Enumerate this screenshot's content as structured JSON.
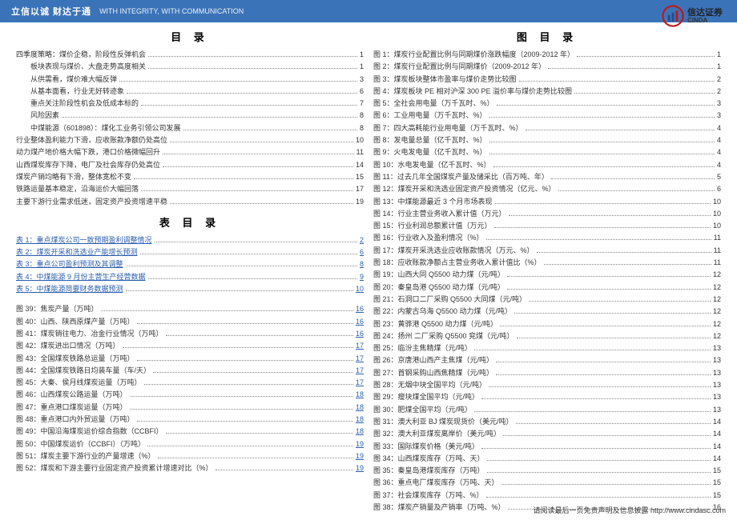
{
  "header": {
    "cn": "立信以诚 财达于通",
    "en": "WITH INTEGRITY, WITH COMMUNICATION",
    "logo_cn": "信达证券",
    "logo_en": "CINDA"
  },
  "titles": {
    "toc": "目 录",
    "tables": "表 目 录",
    "figures": "图 目 录"
  },
  "toc_main": [
    {
      "t": "四季度策略：煤价企稳，阶段性反弹机会",
      "p": "1"
    },
    {
      "t": "板块表现与煤价、大盘走势高度相关",
      "p": "1",
      "i": 1
    },
    {
      "t": "从供需看，煤价难大幅反弹",
      "p": "3",
      "i": 1
    },
    {
      "t": "从基本面看，行业无好转迹象",
      "p": "6",
      "i": 1
    },
    {
      "t": "重点关注阶段性机会及低成本标的",
      "p": "7",
      "i": 1
    },
    {
      "t": "风险因素",
      "p": "8",
      "i": 1
    },
    {
      "t": "中煤能源（601898）：煤化工业务引领公司发展",
      "p": "8",
      "i": 1
    },
    {
      "t": "行业整体盈利能力下滑，应收账款净额仍处高位",
      "p": "10"
    },
    {
      "t": "动力煤产地价格大幅下跌，港口价格微幅回升",
      "p": "11"
    },
    {
      "t": "山西煤炭库存下降，电厂及社会库存仍处高位",
      "p": "14"
    },
    {
      "t": "煤炭产销均略有下滑，整体宽松不变",
      "p": "15"
    },
    {
      "t": "铁路运量基本稳定，沿海运价大幅回落",
      "p": "17"
    },
    {
      "t": "主要下游行业需求低迷，固定资产投资增速平稳",
      "p": "19"
    }
  ],
  "toc_tables": [
    {
      "t": "表 1：重点煤炭公司一致预期盈利调整情况",
      "p": "2",
      "link": true
    },
    {
      "t": "表 2：煤炭开采和洗选业产能增长预测",
      "p": "6",
      "link": true
    },
    {
      "t": "表 3：重点公司盈利预测及其调整",
      "p": "8",
      "link": true
    },
    {
      "t": "表 4：中煤能源 9 月份主营生产经营数据",
      "p": "9",
      "link": true
    },
    {
      "t": "表 5：中煤能源简要财务数据预测",
      "p": "10",
      "link": true
    }
  ],
  "toc_fig_left": [
    {
      "t": "图 39：焦炭产量（万吨）",
      "p": "16",
      "pl": true
    },
    {
      "t": "图 40：山西、陕西原煤产量（万吨）",
      "p": "16",
      "pl": true
    },
    {
      "t": "图 41：煤炭销往电力、冶金行业情况（万吨）",
      "p": "16",
      "pl": true
    },
    {
      "t": "图 42：煤炭进出口情况（万吨）",
      "p": "17",
      "pl": true
    },
    {
      "t": "图 43：全国煤炭铁路总运量（万吨）",
      "p": "17",
      "pl": true
    },
    {
      "t": "图 44：全国煤炭铁路日均装车量（车/天）",
      "p": "17",
      "pl": true
    },
    {
      "t": "图 45：大秦、侯月线煤炭运量（万吨）",
      "p": "17",
      "pl": true
    },
    {
      "t": "图 46：山西煤炭公路运量（万吨）",
      "p": "18",
      "pl": true
    },
    {
      "t": "图 47：重点港口煤炭运量（万吨）",
      "p": "18",
      "pl": true
    },
    {
      "t": "图 48：重点港口内外贸运量（万吨）",
      "p": "18",
      "pl": true
    },
    {
      "t": "图 49：中国沿海煤炭运价综合指数（CCBFI）",
      "p": "18",
      "pl": true
    },
    {
      "t": "图 50：中国煤炭运价（CCBFI）（万吨）",
      "p": "19",
      "pl": true
    },
    {
      "t": "图 51：煤炭主要下游行业的产量增速（%）",
      "p": "19",
      "pl": true
    },
    {
      "t": "图 52：煤炭和下游主要行业固定资产投资累计增速对比（%）",
      "p": "19",
      "pl": true
    }
  ],
  "toc_fig_right": [
    {
      "t": "图 1：煤炭行业配置比例与同期煤价涨跌幅度（2009-2012 年）",
      "p": "1"
    },
    {
      "t": "图 2：煤炭行业配置比例与同期煤价（2009-2012 年）",
      "p": "1"
    },
    {
      "t": "图 3：煤炭板块整体市盈率与煤价走势比较图",
      "p": "2"
    },
    {
      "t": "图 4：煤炭板块 PE 相对沪深 300 PE 溢价率与煤价走势比较图",
      "p": "2"
    },
    {
      "t": "图 5：全社会用电量（万千瓦时、%）",
      "p": "3"
    },
    {
      "t": "图 6：工业用电量（万千瓦时、%）",
      "p": "3"
    },
    {
      "t": "图 7：四大高耗能行业用电量（万千瓦时、%）",
      "p": "4"
    },
    {
      "t": "图 8：发电量总量（亿千瓦时、%）",
      "p": "4"
    },
    {
      "t": "图 9：火电发电量（亿千瓦时、%）",
      "p": "4"
    },
    {
      "t": "图 10：水电发电量（亿千瓦时、%）",
      "p": "4"
    },
    {
      "t": "图 11：过去几年全国煤炭产量及储采比（百万吨、年）",
      "p": "5"
    },
    {
      "t": "图 12：煤炭开采和洗选业固定资产投资情况（亿元、%）",
      "p": "6"
    },
    {
      "t": "图 13：中煤能源最近 3 个月市场表现",
      "p": "10"
    },
    {
      "t": "图 14：行业主营业务收入累计值（万元）",
      "p": "10"
    },
    {
      "t": "图 15：行业利润总额累计值（万元）",
      "p": "10"
    },
    {
      "t": "图 16：行业收入及盈利情况（%）",
      "p": "11"
    },
    {
      "t": "图 17：煤炭开采洗选业应收账款情况（万元、%）",
      "p": "11"
    },
    {
      "t": "图 18：应收账款净额占主营业务收入累计值比（%）",
      "p": "11"
    },
    {
      "t": "图 19：山西大同 Q5500 动力煤（元/吨）",
      "p": "12"
    },
    {
      "t": "图 20：秦皇岛港 Q5500 动力煤（元/吨）",
      "p": "12"
    },
    {
      "t": "图 21：石洞口二厂采购 Q5500 大同煤（元/吨）",
      "p": "12"
    },
    {
      "t": "图 22：内蒙古乌海 Q5500 动力煤（元/吨）",
      "p": "12"
    },
    {
      "t": "图 23：黄骅港 Q5500 动力煤（元/吨）",
      "p": "12"
    },
    {
      "t": "图 24：扬州 二厂采购 Q5500 兖煤（元/吨）",
      "p": "12"
    },
    {
      "t": "图 25：临汾主焦精煤（元/吨）",
      "p": "13"
    },
    {
      "t": "图 26：京唐港山西产主焦煤（元/吨）",
      "p": "13"
    },
    {
      "t": "图 27：首钢采购山西焦精煤（元/吨）",
      "p": "13"
    },
    {
      "t": "图 28：无烟中块全国平均（元/吨）",
      "p": "13"
    },
    {
      "t": "图 29：瘦块煤全国平均（元/吨）",
      "p": "13"
    },
    {
      "t": "图 30：肥煤全国平均（元/吨）",
      "p": "13"
    },
    {
      "t": "图 31：澳大利亚 BJ 煤炭现货价（美元/吨）",
      "p": "14"
    },
    {
      "t": "图 32：澳大利亚煤炭离岸价（美元/吨）",
      "p": "14"
    },
    {
      "t": "图 33：国际煤炭价格（美元/吨）",
      "p": "14"
    },
    {
      "t": "图 34：山西煤炭库存（万吨、天）",
      "p": "14"
    },
    {
      "t": "图 35：秦皇岛港煤炭库存（万吨）",
      "p": "15"
    },
    {
      "t": "图 36：重点电厂煤炭库存（万吨、天）",
      "p": "15"
    },
    {
      "t": "图 37：社会煤炭库存（万吨、%）",
      "p": "15"
    },
    {
      "t": "图 38：煤炭产销量及产销率（万吨、%）",
      "p": "16"
    }
  ],
  "footer": "请阅读最后一页免责声明及信息披露  http://www.cindasc.com"
}
